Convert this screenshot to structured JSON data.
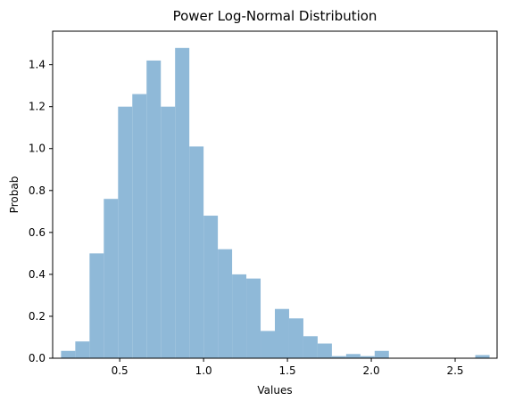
{
  "chart_data": {
    "type": "bar",
    "title": "Power Log-Normal Distribution",
    "xlabel": "Values",
    "ylabel": "Probab",
    "xlim": [
      0.1,
      2.75
    ],
    "ylim": [
      0,
      1.56
    ],
    "grid": false,
    "bar_color": "#8fb9d8",
    "bins": [
      {
        "x0": 0.15,
        "x1": 0.235,
        "value": 0.035
      },
      {
        "x0": 0.235,
        "x1": 0.32,
        "value": 0.08
      },
      {
        "x0": 0.32,
        "x1": 0.405,
        "value": 0.5
      },
      {
        "x0": 0.405,
        "x1": 0.49,
        "value": 0.76
      },
      {
        "x0": 0.49,
        "x1": 0.575,
        "value": 1.2
      },
      {
        "x0": 0.575,
        "x1": 0.66,
        "value": 1.26
      },
      {
        "x0": 0.66,
        "x1": 0.745,
        "value": 1.42
      },
      {
        "x0": 0.745,
        "x1": 0.83,
        "value": 1.2
      },
      {
        "x0": 0.83,
        "x1": 0.915,
        "value": 1.48
      },
      {
        "x0": 0.915,
        "x1": 1.0,
        "value": 1.01
      },
      {
        "x0": 1.0,
        "x1": 1.085,
        "value": 0.68
      },
      {
        "x0": 1.085,
        "x1": 1.17,
        "value": 0.52
      },
      {
        "x0": 1.17,
        "x1": 1.255,
        "value": 0.4
      },
      {
        "x0": 1.255,
        "x1": 1.34,
        "value": 0.38
      },
      {
        "x0": 1.34,
        "x1": 1.425,
        "value": 0.13
      },
      {
        "x0": 1.425,
        "x1": 1.51,
        "value": 0.235
      },
      {
        "x0": 1.51,
        "x1": 1.595,
        "value": 0.19
      },
      {
        "x0": 1.595,
        "x1": 1.68,
        "value": 0.105
      },
      {
        "x0": 1.68,
        "x1": 1.765,
        "value": 0.07
      },
      {
        "x0": 1.765,
        "x1": 1.85,
        "value": 0.01
      },
      {
        "x0": 1.85,
        "x1": 1.935,
        "value": 0.02
      },
      {
        "x0": 1.935,
        "x1": 2.02,
        "value": 0.01
      },
      {
        "x0": 2.02,
        "x1": 2.105,
        "value": 0.035
      },
      {
        "x0": 2.62,
        "x1": 2.705,
        "value": 0.015
      }
    ],
    "x_ticks": [
      {
        "value": 0.5,
        "label": "0.5"
      },
      {
        "value": 1.0,
        "label": "1.0"
      },
      {
        "value": 1.5,
        "label": "1.5"
      },
      {
        "value": 2.0,
        "label": "2.0"
      },
      {
        "value": 2.5,
        "label": "2.5"
      }
    ],
    "y_ticks": [
      {
        "value": 0.0,
        "label": "0.0"
      },
      {
        "value": 0.2,
        "label": "0.2"
      },
      {
        "value": 0.4,
        "label": "0.4"
      },
      {
        "value": 0.6,
        "label": "0.6"
      },
      {
        "value": 0.8,
        "label": "0.8"
      },
      {
        "value": 1.0,
        "label": "1.0"
      },
      {
        "value": 1.2,
        "label": "1.2"
      },
      {
        "value": 1.4,
        "label": "1.4"
      }
    ]
  }
}
